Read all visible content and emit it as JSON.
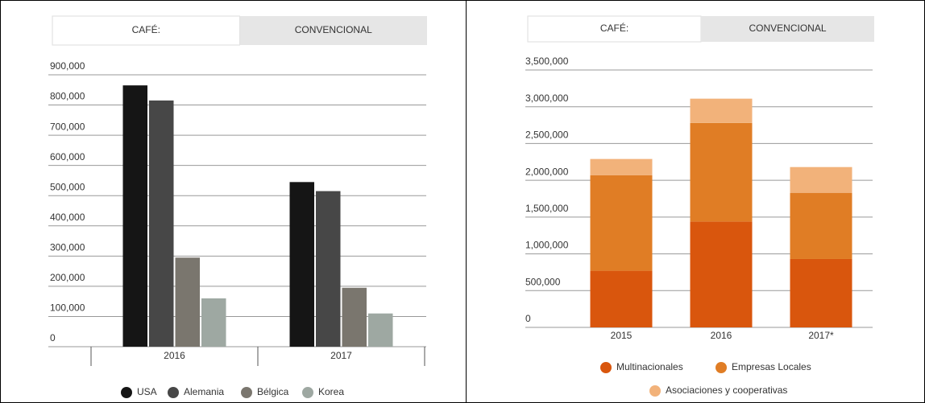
{
  "chart_data": [
    {
      "type": "bar",
      "tabs": [
        "CAFÉ:",
        "CONVENCIONAL"
      ],
      "categories": [
        "2016",
        "2017"
      ],
      "series": [
        {
          "name": "USA",
          "color": "#151515",
          "values": [
            865000,
            545000
          ]
        },
        {
          "name": "Alemania",
          "color": "#474747",
          "values": [
            815000,
            515000
          ]
        },
        {
          "name": "Bélgica",
          "color": "#7a766e",
          "values": [
            295000,
            195000
          ]
        },
        {
          "name": "Korea",
          "color": "#9ea8a2",
          "values": [
            160000,
            110000
          ]
        }
      ],
      "ylim": [
        0,
        900000
      ],
      "yticks": [
        0,
        {
          "value": 100000,
          "label": "100,000"
        },
        {
          "value": 200000,
          "label": "200,000"
        },
        {
          "value": 300000,
          "label": "300,000"
        },
        {
          "value": 400000,
          "label": "400,000"
        },
        {
          "value": 500000,
          "label": "500,000"
        },
        {
          "value": 600000,
          "label": "600,000"
        },
        {
          "value": 700000,
          "label": "700,000"
        },
        {
          "value": 800000,
          "label": "800,000"
        },
        {
          "value": 900000,
          "label": "900,000"
        }
      ],
      "grid": true,
      "legend": "bottom"
    },
    {
      "type": "stacked_bar",
      "tabs": [
        "CAFÉ:",
        "CONVENCIONAL"
      ],
      "categories": [
        "2015",
        "2016",
        "2017*"
      ],
      "series": [
        {
          "name": "Multinacionales",
          "color": "#d9560d",
          "values": [
            770000,
            1440000,
            930000
          ]
        },
        {
          "name": "Empresas Locales",
          "color": "#e07d25",
          "values": [
            1300000,
            1340000,
            900000
          ]
        },
        {
          "name": "Asociaciones y cooperativas",
          "color": "#f2b27a",
          "values": [
            220000,
            330000,
            350000
          ]
        }
      ],
      "ylim": [
        0,
        3500000
      ],
      "yticks": [
        0,
        {
          "value": 500000,
          "label": "500,000"
        },
        {
          "value": 1000000,
          "label": "1,000,000"
        },
        {
          "value": 1500000,
          "label": "1,500,000"
        },
        {
          "value": 2000000,
          "label": "2,000,000"
        },
        {
          "value": 2500000,
          "label": "2,500,000"
        },
        {
          "value": 3000000,
          "label": "3,000,000"
        },
        {
          "value": 3500000,
          "label": "3,500,000"
        }
      ],
      "grid": true,
      "legend": "bottom"
    }
  ]
}
